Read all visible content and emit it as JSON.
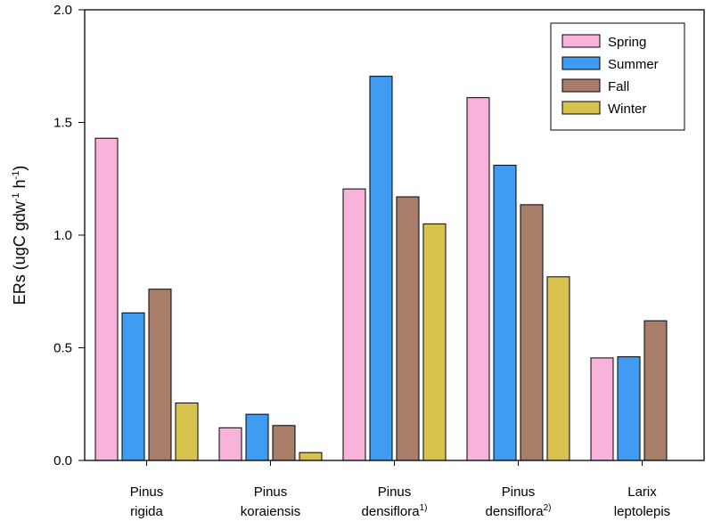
{
  "chart_data": {
    "type": "bar",
    "categories": [
      {
        "line1": "Pinus",
        "line2": "rigida",
        "sup": ""
      },
      {
        "line1": "Pinus",
        "line2": "koraiensis",
        "sup": ""
      },
      {
        "line1": "Pinus",
        "line2": "densiflora",
        "sup": "1)"
      },
      {
        "line1": "Pinus",
        "line2": "densiflora",
        "sup": "2)"
      },
      {
        "line1": "Larix",
        "line2": "leptolepis",
        "sup": ""
      }
    ],
    "series": [
      {
        "name": "Spring",
        "color": "#f7b3d9",
        "values": [
          1.43,
          0.145,
          1.205,
          1.61,
          0.455
        ]
      },
      {
        "name": "Summer",
        "color": "#3f9cf2",
        "values": [
          0.655,
          0.205,
          1.705,
          1.31,
          0.46
        ]
      },
      {
        "name": "Fall",
        "color": "#a87d6a",
        "values": [
          0.76,
          0.155,
          1.17,
          1.135,
          0.62
        ]
      },
      {
        "name": "Winter",
        "color": "#d7c24e",
        "values": [
          0.255,
          0.035,
          1.05,
          0.815,
          null
        ]
      }
    ],
    "ylabel": {
      "main": "ERs (ugC gdw",
      "sup1": "-1",
      "mid": " h",
      "sup2": "-1",
      "end": ")"
    },
    "ylim": [
      0,
      2.0
    ],
    "yticks": [
      "0.0",
      "0.5",
      "1.0",
      "1.5",
      "2.0"
    ],
    "grid": false,
    "legend_position": "top-right"
  }
}
